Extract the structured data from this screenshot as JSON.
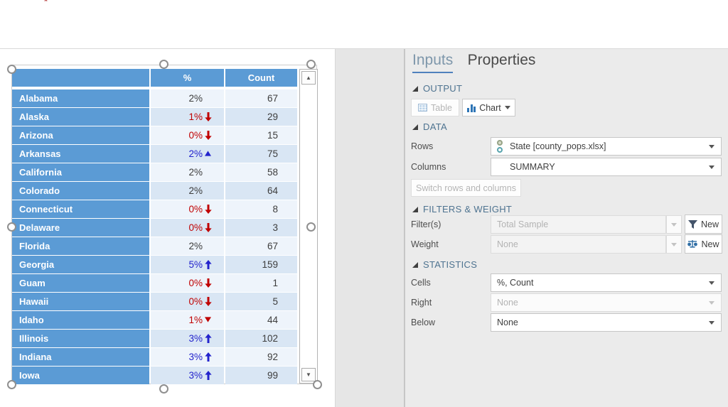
{
  "colors": {
    "header_blue": "#5b9bd5",
    "row_light": "#eef4fb",
    "row_dark": "#d9e6f4",
    "sig_up": "#2323cc",
    "sig_down": "#c00000",
    "accent": "#4f81bd"
  },
  "canvas": {
    "table": {
      "columns": [
        "",
        "%",
        "Count"
      ],
      "rows": [
        {
          "state": "Alabama",
          "pct": "2%",
          "arrow": "none",
          "count": "67"
        },
        {
          "state": "Alaska",
          "pct": "1%",
          "arrow": "down-big",
          "count": "29"
        },
        {
          "state": "Arizona",
          "pct": "0%",
          "arrow": "down-big",
          "count": "15"
        },
        {
          "state": "Arkansas",
          "pct": "2%",
          "arrow": "up-small",
          "count": "75"
        },
        {
          "state": "California",
          "pct": "2%",
          "arrow": "none",
          "count": "58"
        },
        {
          "state": "Colorado",
          "pct": "2%",
          "arrow": "none",
          "count": "64"
        },
        {
          "state": "Connecticut",
          "pct": "0%",
          "arrow": "down-big",
          "count": "8"
        },
        {
          "state": "Delaware",
          "pct": "0%",
          "arrow": "down-big",
          "count": "3"
        },
        {
          "state": "Florida",
          "pct": "2%",
          "arrow": "none",
          "count": "67"
        },
        {
          "state": "Georgia",
          "pct": "5%",
          "arrow": "up-big",
          "count": "159"
        },
        {
          "state": "Guam",
          "pct": "0%",
          "arrow": "down-big",
          "count": "1"
        },
        {
          "state": "Hawaii",
          "pct": "0%",
          "arrow": "down-big",
          "count": "5"
        },
        {
          "state": "Idaho",
          "pct": "1%",
          "arrow": "down-small",
          "count": "44"
        },
        {
          "state": "Illinois",
          "pct": "3%",
          "arrow": "up-big",
          "count": "102"
        },
        {
          "state": "Indiana",
          "pct": "3%",
          "arrow": "up-big",
          "count": "92"
        },
        {
          "state": "Iowa",
          "pct": "3%",
          "arrow": "up-big",
          "count": "99"
        }
      ]
    },
    "scrollbar": {
      "up_glyph": "▲",
      "down_glyph": "▼"
    }
  },
  "panel": {
    "tabs": {
      "inputs": "Inputs",
      "properties": "Properties"
    },
    "output": {
      "title": "OUTPUT",
      "table_button": "Table",
      "chart_button": "Chart"
    },
    "data": {
      "title": "DATA",
      "rows_label": "Rows",
      "rows_value": "State [county_pops.xlsx]",
      "columns_label": "Columns",
      "columns_value": "SUMMARY",
      "switch_button": "Switch rows and columns"
    },
    "filters": {
      "title": "FILTERS & WEIGHT",
      "filter_label": "Filter(s)",
      "filter_value": "Total Sample",
      "filter_new_label": "New",
      "weight_label": "Weight",
      "weight_value": "None",
      "weight_new_label": "New"
    },
    "statistics": {
      "title": "STATISTICS",
      "cells_label": "Cells",
      "cells_value": "%, Count",
      "right_label": "Right",
      "right_value": "None",
      "below_label": "Below",
      "below_value": "None"
    }
  },
  "top": {
    "marker": "*"
  }
}
